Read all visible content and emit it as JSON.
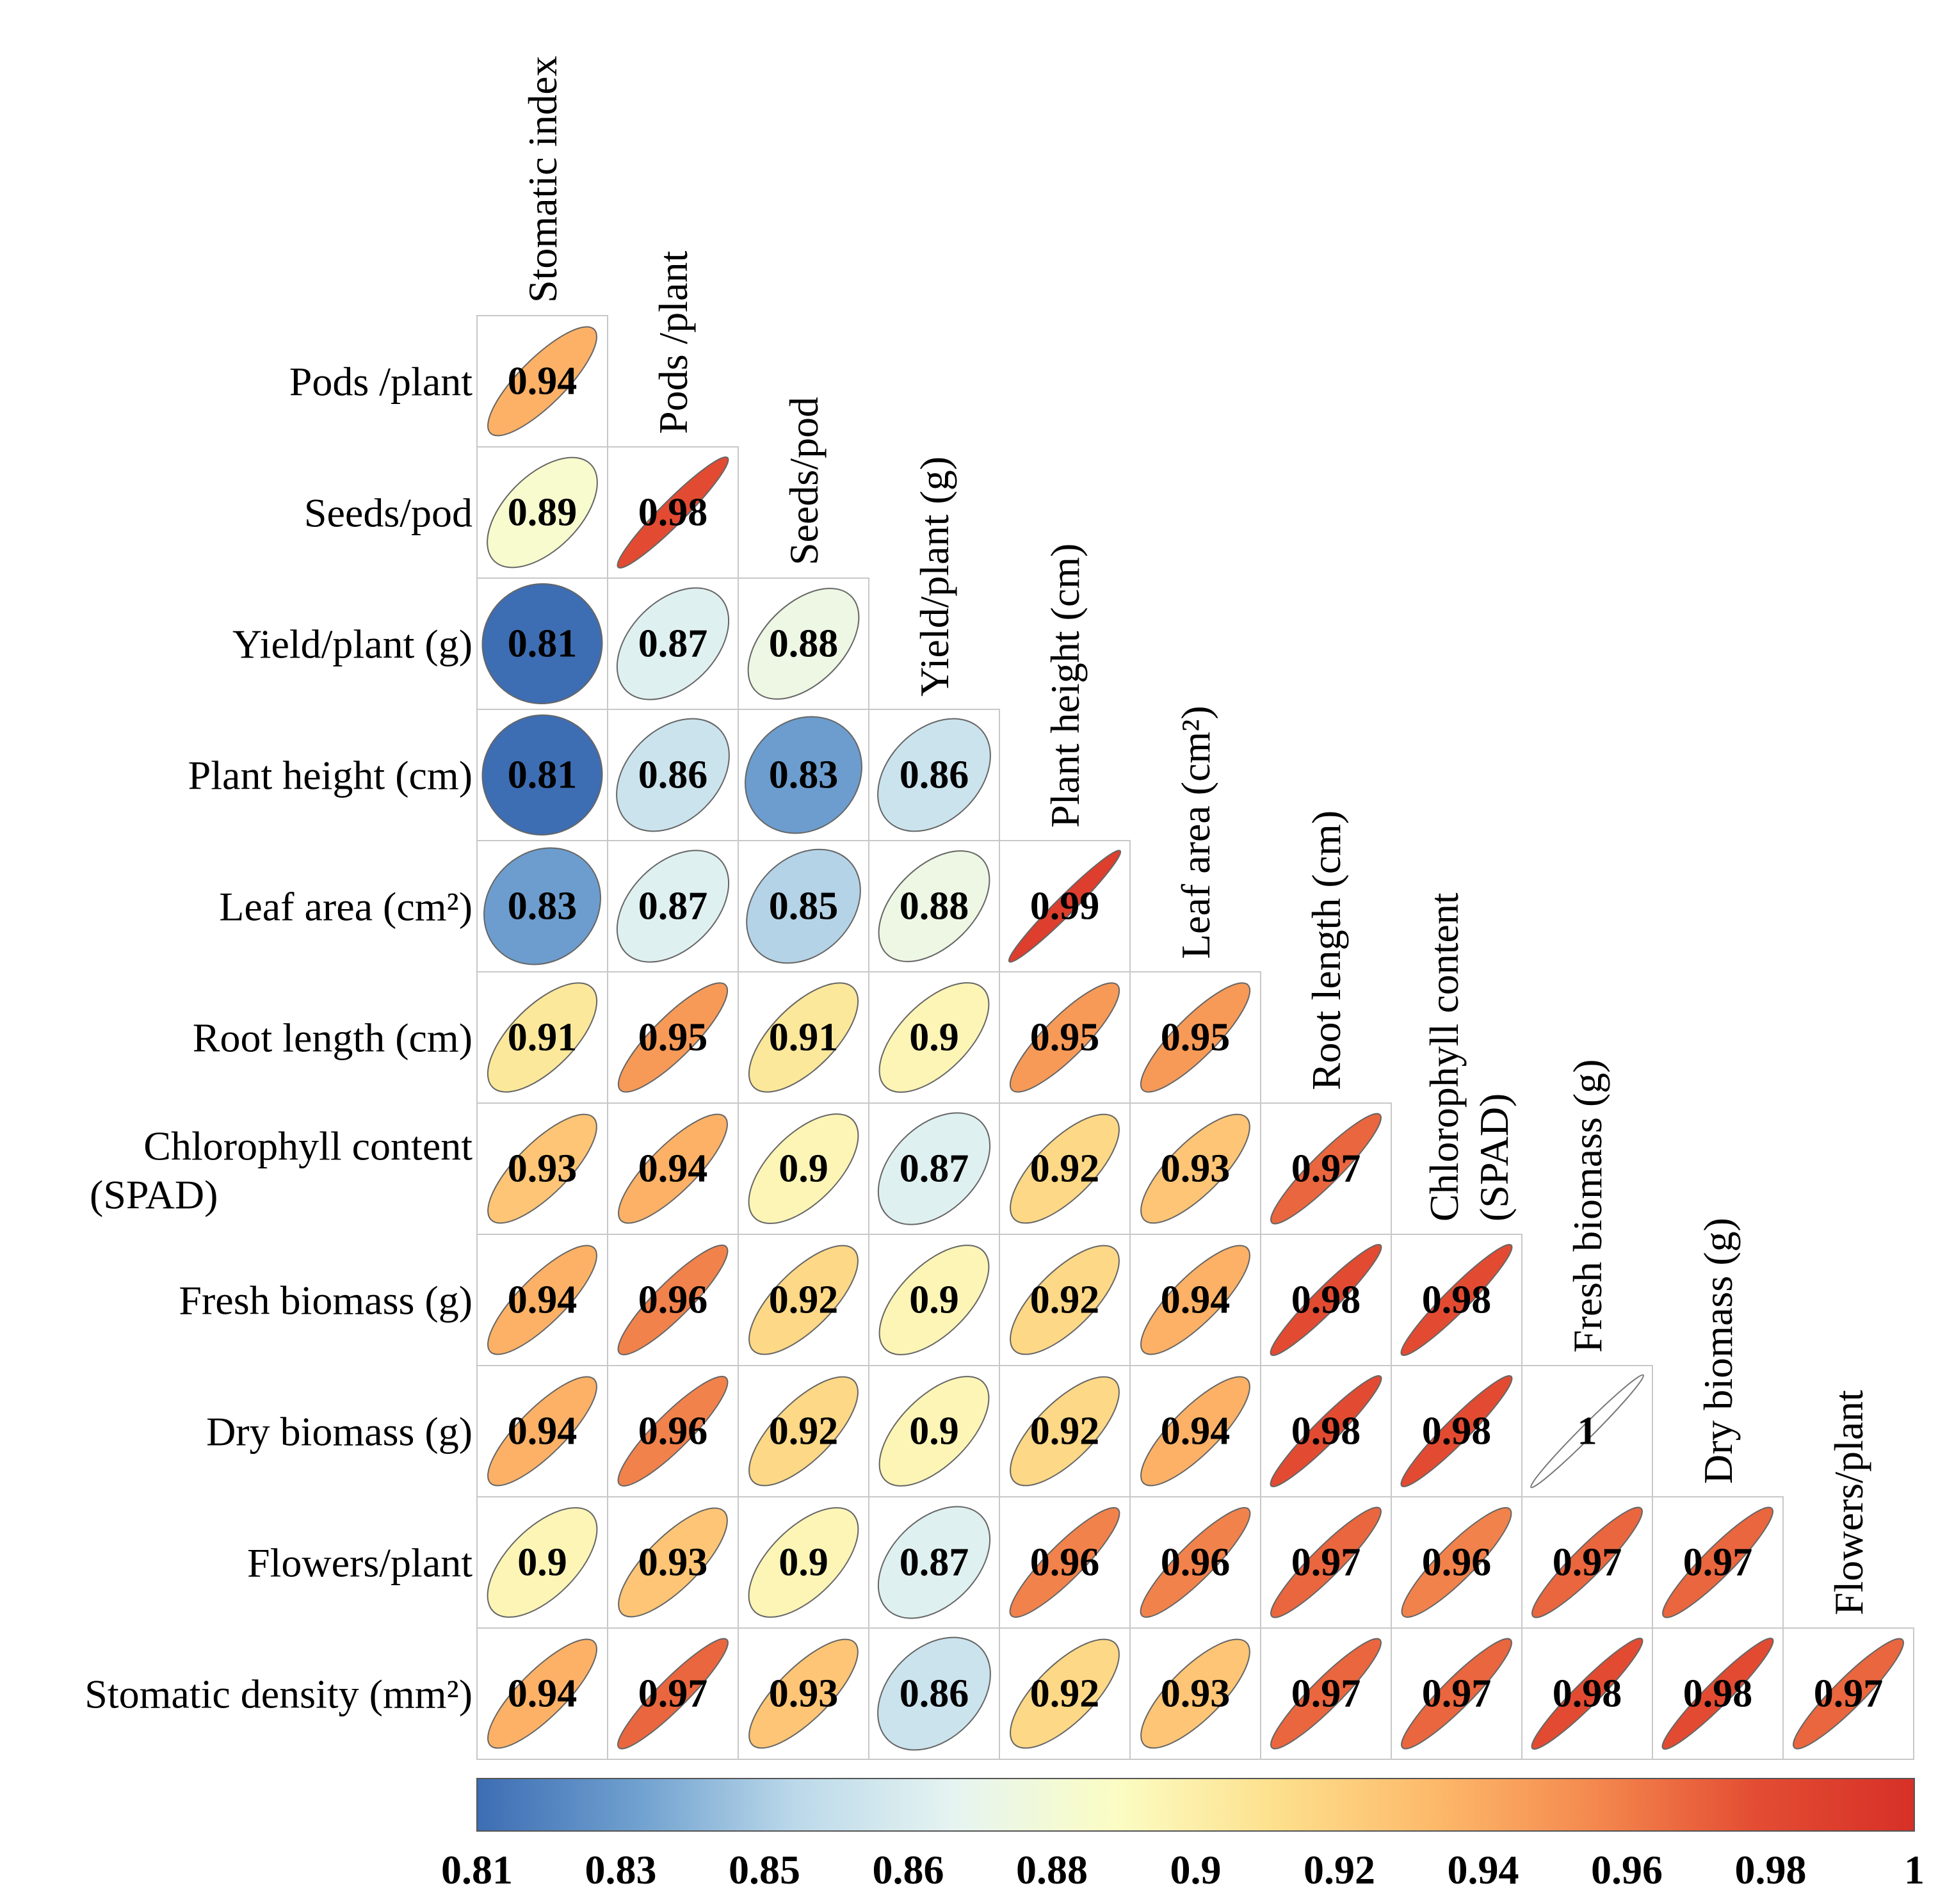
{
  "chart_data": {
    "type": "heatmap",
    "subtype": "lower-triangle correlation matrix (ellipse glyphs)",
    "row_labels": [
      "Pods /plant",
      "Seeds/pod",
      "Yield/plant (g)",
      "Plant height (cm)",
      "Leaf area (cm²)",
      "Root length (cm)",
      "Chlorophyll content (SPAD)",
      "Fresh biomass (g)",
      "Dry biomass (g)",
      "Flowers/plant",
      "Stomatic density (mm²)"
    ],
    "column_labels": [
      "Stomatic index",
      "Pods /plant",
      "Seeds/pod",
      "Yield/plant (g)",
      "Plant height (cm)",
      "Leaf area (cm²)",
      "Root length (cm)",
      "Chlorophyll content (SPAD)",
      "Fresh biomass (g)",
      "Dry biomass (g)",
      "Flowers/plant"
    ],
    "values": [
      [
        0.94
      ],
      [
        0.89,
        0.98
      ],
      [
        0.81,
        0.87,
        0.88
      ],
      [
        0.81,
        0.86,
        0.83,
        0.86
      ],
      [
        0.83,
        0.87,
        0.85,
        0.88,
        0.99
      ],
      [
        0.91,
        0.95,
        0.91,
        0.9,
        0.95,
        0.95
      ],
      [
        0.93,
        0.94,
        0.9,
        0.87,
        0.92,
        0.93,
        0.97
      ],
      [
        0.94,
        0.96,
        0.92,
        0.9,
        0.92,
        0.94,
        0.98,
        0.98
      ],
      [
        0.94,
        0.96,
        0.92,
        0.9,
        0.92,
        0.94,
        0.98,
        0.98,
        1
      ],
      [
        0.9,
        0.93,
        0.9,
        0.87,
        0.96,
        0.96,
        0.97,
        0.96,
        0.97,
        0.97
      ],
      [
        0.94,
        0.97,
        0.93,
        0.86,
        0.92,
        0.93,
        0.97,
        0.97,
        0.98,
        0.98,
        0.97
      ]
    ],
    "colorbar": {
      "min": 0.81,
      "max": 1,
      "ticks": [
        "0.81",
        "0.83",
        "0.85",
        "0.86",
        "0.88",
        "0.9",
        "0.92",
        "0.94",
        "0.96",
        "0.98",
        "1"
      ],
      "colors": [
        "#3d6db3",
        "#6fa0cf",
        "#bcd9ea",
        "#e6f4f1",
        "#fbfdc4",
        "#fde08d",
        "#fdb96a",
        "#f4884e",
        "#e34d33",
        "#d73027"
      ]
    }
  }
}
